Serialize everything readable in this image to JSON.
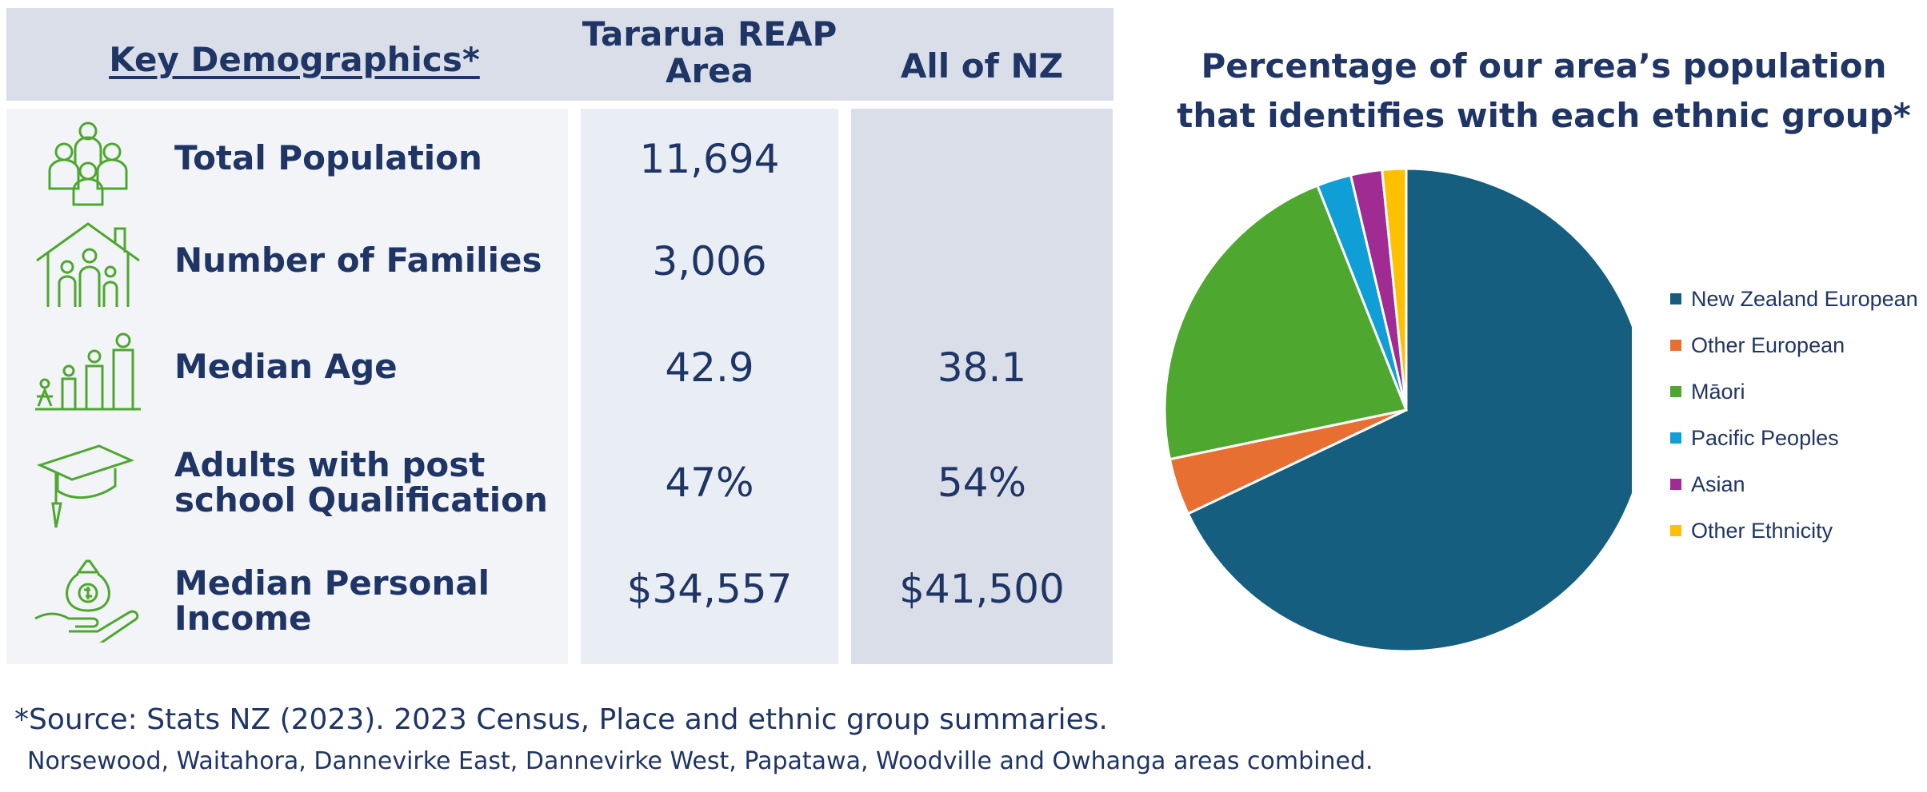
{
  "table": {
    "header_label": "Key Demographics*",
    "header_reap": "Tararua REAP Area",
    "header_nz": "All of NZ",
    "rows": [
      {
        "icon": "family-group-icon",
        "label": "Total Population",
        "reap": "11,694",
        "nz": ""
      },
      {
        "icon": "house-family-icon",
        "label": "Number of Families",
        "reap": "3,006",
        "nz": ""
      },
      {
        "icon": "age-progression-icon",
        "label": "Median Age",
        "reap": "42.9",
        "nz": "38.1"
      },
      {
        "icon": "graduation-cap-icon",
        "label": "Adults with post school Qualification",
        "reap": "47%",
        "nz": "54%"
      },
      {
        "icon": "money-bag-hand-icon",
        "label": "Median Personal Income",
        "reap": "$34,557",
        "nz": "$41,500"
      }
    ]
  },
  "chart_data": {
    "type": "pie",
    "title": "Percentage of our area’s population that identifies with each ethnic group*",
    "legend_position": "right",
    "slices": [
      {
        "name": "New Zealand European",
        "value": 68.0,
        "color": "#155e80"
      },
      {
        "name": "Other European",
        "value": 3.8,
        "color": "#e86f32"
      },
      {
        "name": "Māori",
        "value": 22.3,
        "color": "#4ea72e"
      },
      {
        "name": "Pacific Peoples",
        "value": 2.3,
        "color": "#0f9ed5"
      },
      {
        "name": "Asian",
        "value": 2.1,
        "color": "#a02b93"
      },
      {
        "name": "Other Ethnicity",
        "value": 1.6,
        "color": "#ffc000"
      }
    ]
  },
  "footer": {
    "source": "*Source: Stats NZ (2023). 2023 Census, Place and ethnic group summaries.",
    "note": "Norsewood, Waitahora, Dannevirke East, Dannevirke West, Papatawa, Woodville and Owhanga areas combined."
  },
  "colors": {
    "navy": "#1f3566",
    "icon_green": "#4ea72e"
  }
}
